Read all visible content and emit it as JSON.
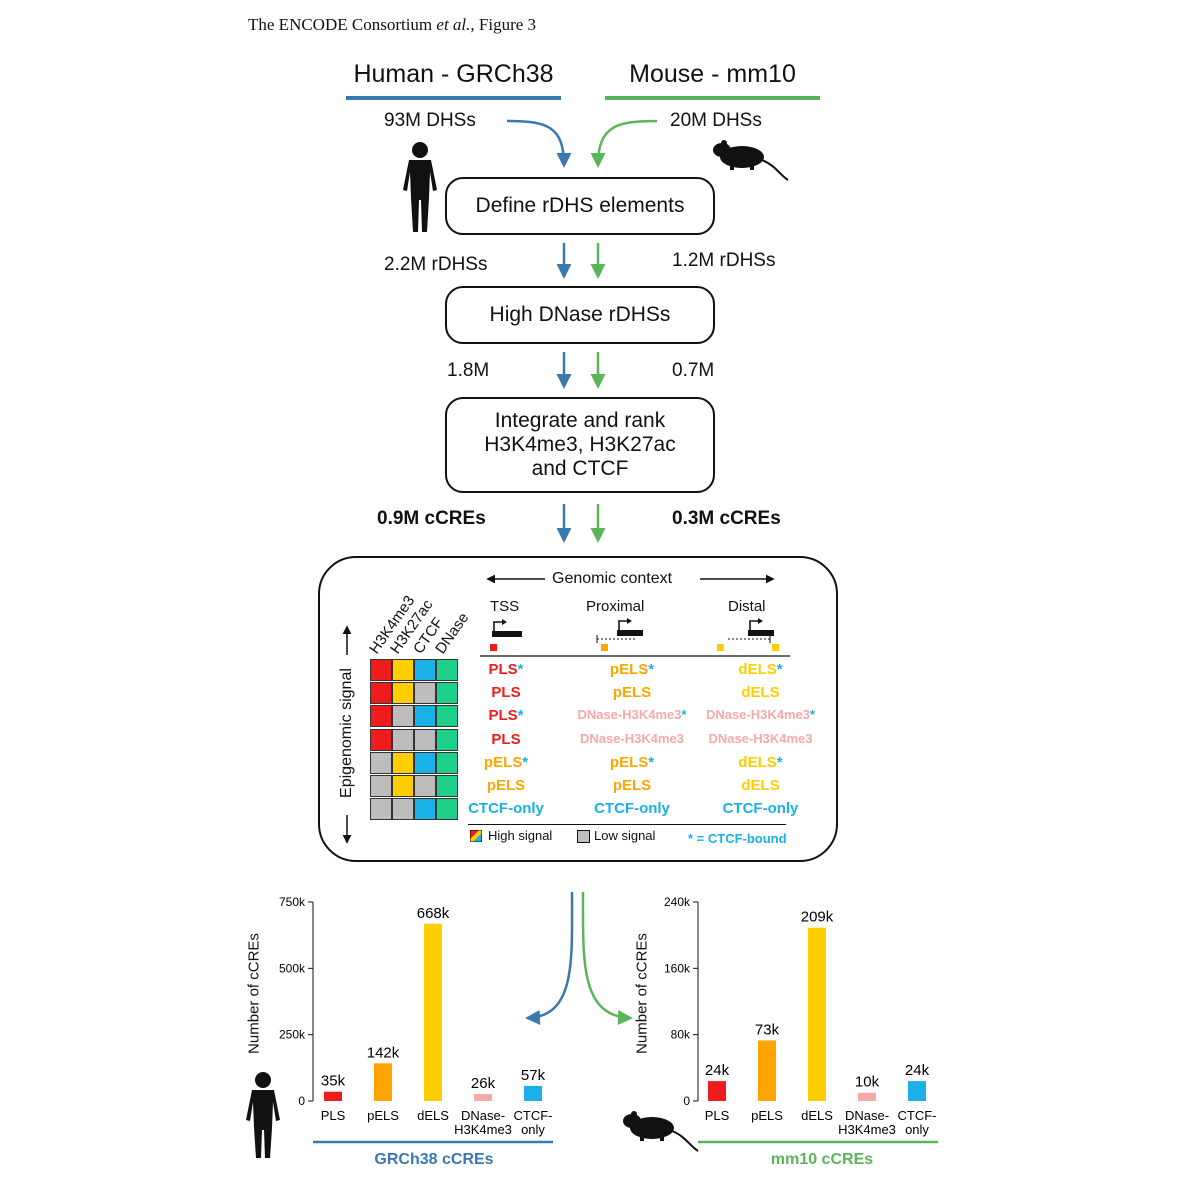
{
  "caption": {
    "prefix": "The ENCODE Consortium ",
    "italic": "et al.,",
    "suffix": " Figure 3"
  },
  "human": {
    "title": "Human - GRCh38",
    "color": "#3a78b0",
    "dhs": "93M DHSs",
    "rdhs": "2.2M rDHSs",
    "high": "1.8M",
    "ccres": "0.9M cCREs"
  },
  "mouse": {
    "title": "Mouse - mm10",
    "color": "#5ab55a",
    "dhs": "20M DHSs",
    "rdhs": "1.2M rDHSs",
    "high": "0.7M",
    "ccres": "0.3M cCREs"
  },
  "steps": {
    "define": "Define rDHS elements",
    "high": "High DNase rDHSs",
    "integrate_1": "Integrate and rank",
    "integrate_2": "H3K4me3, H3K27ac",
    "integrate_3": "and CTCF"
  },
  "classification": {
    "genomic_context": "Genomic context",
    "epigenomic_signal": "Epigenomic signal",
    "marks": [
      "H3K4me3",
      "H3K27ac",
      "CTCF",
      "DNase"
    ],
    "contexts": [
      "TSS",
      "Proximal",
      "Distal"
    ],
    "rows": [
      {
        "tss": "PLS",
        "prox": "pELS",
        "dist": "dELS",
        "star": "*"
      },
      {
        "tss": "PLS",
        "prox": "pELS",
        "dist": "dELS",
        "star": ""
      },
      {
        "tss": "PLS",
        "prox": "DNase-H3K4me3",
        "dist": "DNase-H3K4me3",
        "star": "*"
      },
      {
        "tss": "PLS",
        "prox": "DNase-H3K4me3",
        "dist": "DNase-H3K4me3",
        "star": ""
      },
      {
        "tss": "pELS",
        "prox": "pELS",
        "dist": "dELS",
        "star": "*"
      },
      {
        "tss": "pELS",
        "prox": "pELS",
        "dist": "dELS",
        "star": ""
      },
      {
        "tss": "CTCF-only",
        "prox": "CTCF-only",
        "dist": "CTCF-only",
        "star": ""
      }
    ],
    "legend_high": "High signal",
    "legend_low": "Low signal",
    "legend_star": "* = CTCF-bound",
    "colors": {
      "PLS": "#ee1c1c",
      "pELS": "#ffa400",
      "dELS": "#ffcd00",
      "DNase-H3K4me3": "#f7a8a8",
      "CTCF-only": "#1ab0e8",
      "DNase": "#1fd088",
      "low": "#bdbdbd"
    }
  },
  "chart_data": [
    {
      "type": "bar",
      "title": "GRCh38 cCREs",
      "ylabel": "Number of cCREs",
      "ylim": [
        0,
        750000
      ],
      "yticks": [
        "0",
        "250k",
        "500k",
        "750k"
      ],
      "categories": [
        "PLS",
        "pELS",
        "dELS",
        "DNase-\nH3K4me3",
        "CTCF-\nonly"
      ],
      "values": [
        35000,
        142000,
        668000,
        26000,
        57000
      ],
      "labels": [
        "35k",
        "142k",
        "668k",
        "26k",
        "57k"
      ],
      "colors": [
        "#ee1c1c",
        "#ffa400",
        "#ffcd00",
        "#f7a8a8",
        "#1ab0e8"
      ]
    },
    {
      "type": "bar",
      "title": "mm10 cCREs",
      "ylabel": "Number of cCREs",
      "ylim": [
        0,
        240000
      ],
      "yticks": [
        "0",
        "80k",
        "160k",
        "240k"
      ],
      "categories": [
        "PLS",
        "pELS",
        "dELS",
        "DNase-\nH3K4me3",
        "CTCF-\nonly"
      ],
      "values": [
        24000,
        73000,
        209000,
        10000,
        24000
      ],
      "labels": [
        "24k",
        "73k",
        "209k",
        "10k",
        "24k"
      ],
      "colors": [
        "#ee1c1c",
        "#ffa400",
        "#ffcd00",
        "#f7a8a8",
        "#1ab0e8"
      ]
    }
  ]
}
